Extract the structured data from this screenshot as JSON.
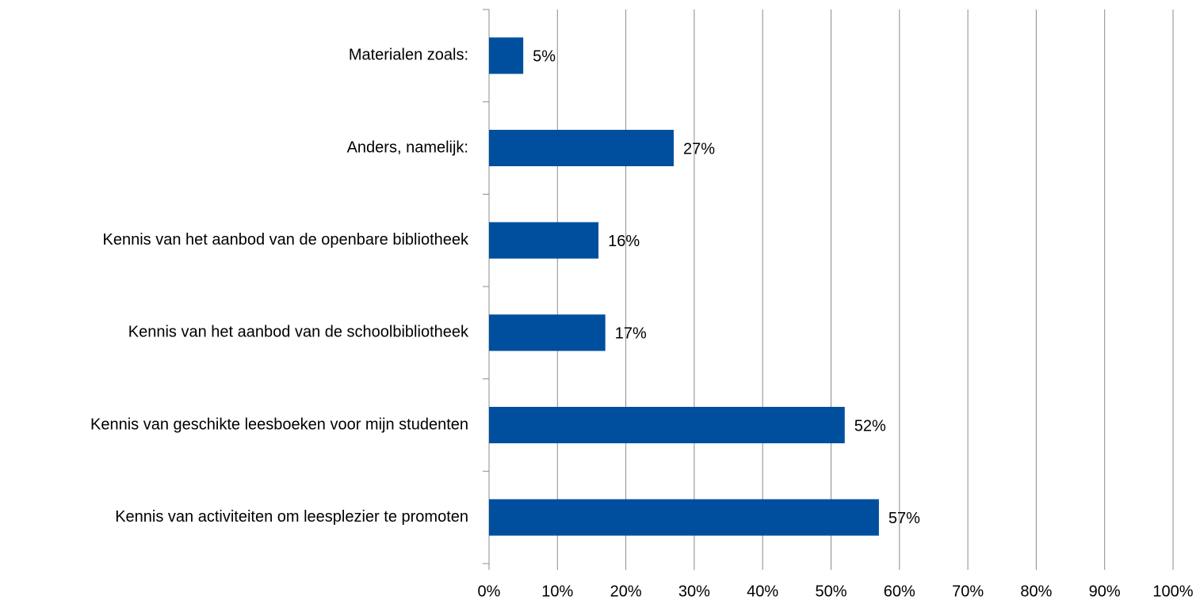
{
  "chart_data": {
    "type": "barh",
    "categories": [
      "Materialen zoals:",
      "Anders, namelijk:",
      "Kennis van het aanbod van de openbare bibliotheek",
      "Kennis van het aanbod van de schoolbibliotheek",
      "Kennis van geschikte leesboeken voor mijn studenten",
      "Kennis van activiteiten om leesplezier te promoten"
    ],
    "values": [
      5,
      27,
      16,
      17,
      52,
      57
    ],
    "value_labels": [
      "5%",
      "27%",
      "16%",
      "17%",
      "52%",
      "57%"
    ],
    "color": "#004f9e",
    "xlim": [
      0,
      100
    ],
    "xticks": [
      {
        "value": 0,
        "label": "0%"
      },
      {
        "value": 10,
        "label": "10%"
      },
      {
        "value": 20,
        "label": "20%"
      },
      {
        "value": 30,
        "label": "30%"
      },
      {
        "value": 40,
        "label": "40%"
      },
      {
        "value": 50,
        "label": "50%"
      },
      {
        "value": 60,
        "label": "60%"
      },
      {
        "value": 70,
        "label": "70%"
      },
      {
        "value": 80,
        "label": "80%"
      },
      {
        "value": 90,
        "label": "90%"
      },
      {
        "value": 100,
        "label": "100%"
      }
    ],
    "grid": true
  }
}
